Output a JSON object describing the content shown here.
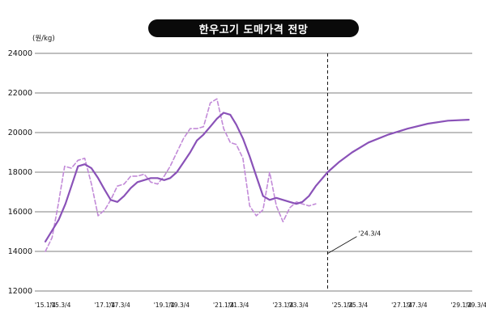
{
  "chart_data": {
    "type": "line",
    "title": "한우고기 도매가격 전망",
    "unit_label": "(원/kg)",
    "ylim": [
      12000,
      24000
    ],
    "y_ticks": [
      "24000",
      "22000",
      "20000",
      "18000",
      "16000",
      "14000",
      "12000"
    ],
    "y_tick_values": [
      24000,
      22000,
      20000,
      18000,
      16000,
      14000,
      12000
    ],
    "grid": "horizontal",
    "xlim": [
      0,
      57
    ],
    "x_ticks": [
      {
        "label": "'15.1/4",
        "x": 0
      },
      {
        "label": "'15.3/4",
        "x": 2
      },
      {
        "label": "'17.1/4",
        "x": 8
      },
      {
        "label": "'17.3/4",
        "x": 10
      },
      {
        "label": "'19.1/4",
        "x": 16
      },
      {
        "label": "'19.3/4",
        "x": 18
      },
      {
        "label": "'21.1/4",
        "x": 24
      },
      {
        "label": "'21.3/4",
        "x": 26
      },
      {
        "label": "'23.1/4",
        "x": 32
      },
      {
        "label": "'23.3/4",
        "x": 34
      },
      {
        "label": "'25.1/4",
        "x": 40
      },
      {
        "label": "'25.3/4",
        "x": 42
      },
      {
        "label": "'27.1/4",
        "x": 48
      },
      {
        "label": "'27.3/4",
        "x": 50
      },
      {
        "label": "'29.1/4",
        "x": 56
      },
      {
        "label": "'29.3/4",
        "x": 58
      }
    ],
    "annotation": {
      "label": "'24.3/4",
      "x": 38,
      "y": 14300
    },
    "divider_x": 38,
    "series": [
      {
        "style": "dashed",
        "color": "#c28ad8",
        "x": [
          0,
          0.9,
          1.7,
          2.6,
          3.5,
          4.4,
          5.3,
          6.2,
          7.1,
          8.0,
          8.8,
          9.7,
          10.6,
          11.5,
          12.4,
          13.3,
          14.2,
          15.1,
          16.0,
          16.8,
          17.7,
          18.6,
          19.5,
          20.4,
          21.3,
          22.2,
          23.1,
          24.0,
          24.9,
          25.7,
          26.6,
          27.5,
          28.4,
          29.3,
          30.2,
          31.1,
          32.0,
          32.9,
          33.8,
          34.6,
          35.5,
          36.4
        ],
        "values": [
          14000,
          14700,
          16300,
          18300,
          18200,
          18600,
          18700,
          17400,
          15800,
          16100,
          16600,
          17300,
          17400,
          17800,
          17800,
          17900,
          17500,
          17400,
          17800,
          18300,
          19000,
          19700,
          20200,
          20200,
          20300,
          21500,
          21700,
          20200,
          19500,
          19400,
          18700,
          16300,
          15800,
          16100,
          18000,
          16300,
          15500,
          16200,
          16500,
          16400,
          16300,
          16400
        ]
      },
      {
        "style": "solid",
        "color": "#8a52b8",
        "x": [
          0,
          1.8,
          2.7,
          3.6,
          4.4,
          5.3,
          6.2,
          7.1,
          8.0,
          8.8,
          9.7,
          10.6,
          11.5,
          12.4,
          13.3,
          14.2,
          15.1,
          16.0,
          16.8,
          17.7,
          18.6,
          19.5,
          20.4,
          21.3,
          22.2,
          23.1,
          24.0,
          24.9,
          25.7,
          26.6,
          27.5,
          28.4,
          29.3,
          30.2,
          31.1,
          32.0,
          32.9,
          33.8,
          34.6,
          35.5,
          36.4,
          38.0,
          39.5,
          41.3,
          43.5,
          46.2,
          48.8,
          51.5,
          54.2,
          57.0
        ],
        "values": [
          14500,
          15600,
          16400,
          17400,
          18300,
          18400,
          18200,
          17700,
          17100,
          16600,
          16500,
          16800,
          17200,
          17500,
          17600,
          17700,
          17700,
          17600,
          17700,
          18000,
          18500,
          19000,
          19600,
          19900,
          20300,
          20700,
          21000,
          20900,
          20400,
          19700,
          18800,
          17800,
          16800,
          16600,
          16700,
          16600,
          16500,
          16400,
          16500,
          16800,
          17300,
          18000,
          18500,
          19000,
          19500,
          19900,
          20200,
          20450,
          20600,
          20650
        ]
      }
    ]
  }
}
